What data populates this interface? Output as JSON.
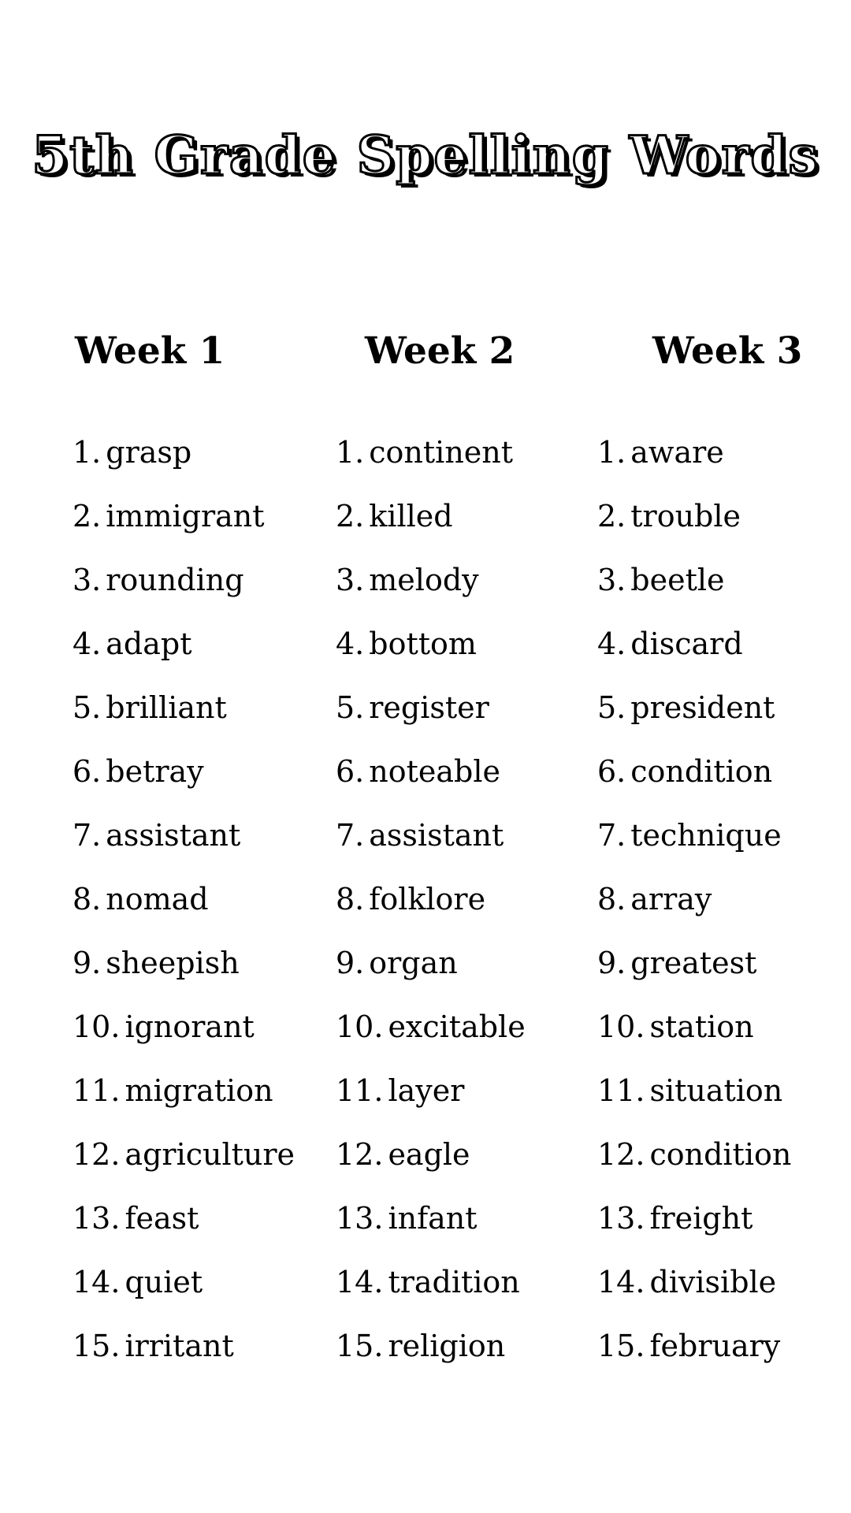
{
  "title": "5th Grade Spelling Words",
  "columns": [
    {
      "label": "Week 1",
      "words": [
        "grasp",
        "immigrant",
        "rounding",
        "adapt",
        "brilliant",
        "betray",
        "assistant",
        "nomad",
        "sheepish",
        "ignorant",
        "migration",
        "agriculture",
        "feast",
        "quiet",
        "irritant"
      ]
    },
    {
      "label": "Week 2",
      "words": [
        "continent",
        "killed",
        "melody",
        "bottom",
        "register",
        "noteable",
        "assistant",
        "folklore",
        "organ",
        "excitable",
        "layer",
        "eagle",
        "infant",
        "tradition",
        "religion"
      ]
    },
    {
      "label": "Week 3",
      "words": [
        "aware",
        "trouble",
        "beetle",
        "discard",
        "president",
        "condition",
        "technique",
        "array",
        "greatest",
        "station",
        "situation",
        "condition",
        "freight",
        "divisible",
        "february"
      ]
    }
  ],
  "colors": {
    "background": "#ffffff",
    "text": "#000000"
  }
}
